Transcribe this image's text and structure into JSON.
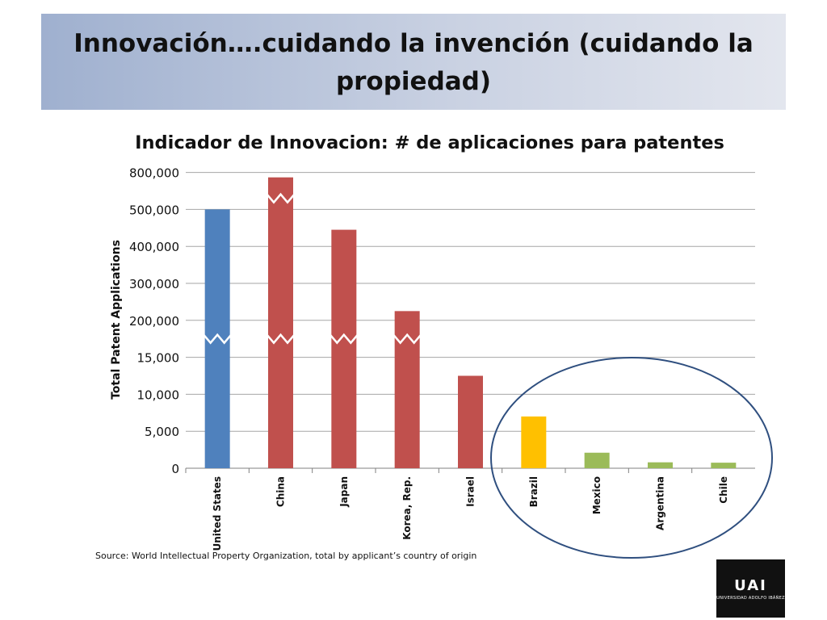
{
  "slide": {
    "title": "Innovación….cuidando la invención (cuidando la propiedad)",
    "source": "Source: World Intellectual Property Organization, total by applicant’s country of origin",
    "logo": {
      "mark": "UAI",
      "text": "UNIVERSIDAD ADOLFO IBÁÑEZ"
    }
  },
  "chart_data": {
    "type": "bar",
    "title": "Indicador de Innovacion: # de aplicaciones para patentes",
    "ylabel": "Total Patent Applications",
    "xlabel": "",
    "categories": [
      "United States",
      "China",
      "Japan",
      "Korea, Rep.",
      "Israel",
      "Brazil",
      "Mexico",
      "Argentina",
      "Chile"
    ],
    "values": [
      500000,
      760000,
      445000,
      225000,
      12500,
      7000,
      2100,
      800,
      750
    ],
    "bar_colors": [
      "#4f81bd",
      "#c0504d",
      "#c0504d",
      "#c0504d",
      "#c0504d",
      "#ffc000",
      "#9bbb59",
      "#9bbb59",
      "#9bbb59"
    ],
    "y_ticks": [
      "0",
      "5,000",
      "10,000",
      "15,000",
      "200,000",
      "300,000",
      "400,000",
      "500,000",
      "800,000"
    ],
    "y_tick_values": [
      0,
      5000,
      10000,
      15000,
      200000,
      300000,
      400000,
      500000,
      800000
    ],
    "axis_breaks": {
      "lower": [
        "United States",
        "China",
        "Japan",
        "Korea, Rep."
      ],
      "upper": [
        "China"
      ]
    },
    "annotation": "ellipse around Brazil, Mexico, Argentina, Chile",
    "grid": true,
    "legend": "none",
    "gridline_color": "#a6a6a6",
    "annotation_color": "#2f4f7f"
  }
}
